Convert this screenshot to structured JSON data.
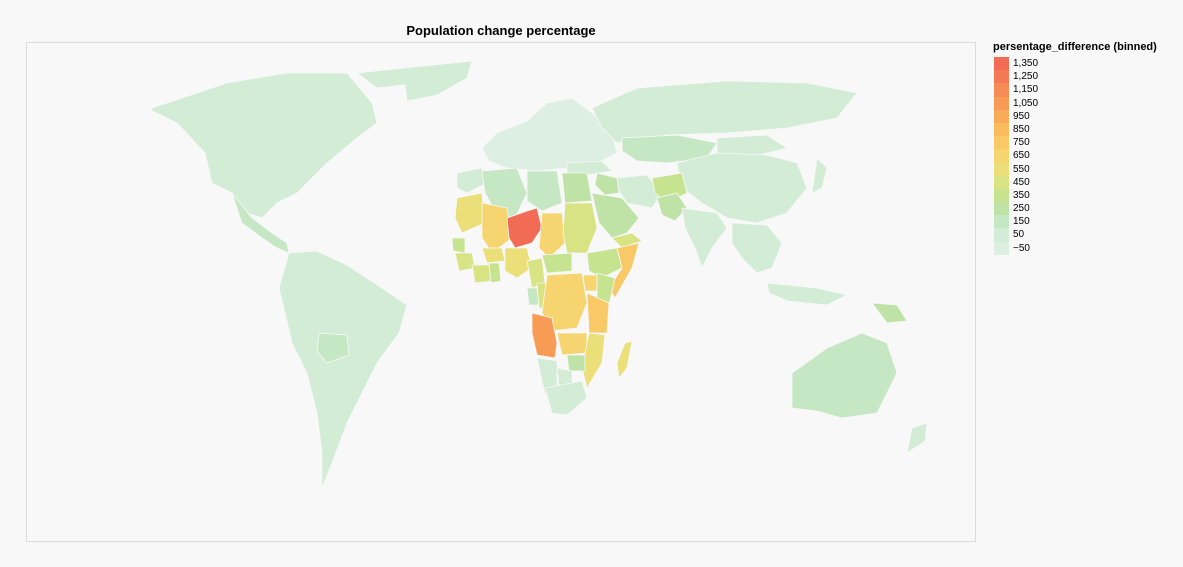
{
  "title": "Population change percentage",
  "legend": {
    "title": "persentage_difference (binned)",
    "bins": [
      {
        "label": "1,350",
        "color": "#f26b55"
      },
      {
        "label": "1,250",
        "color": "#f47a55"
      },
      {
        "label": "1,150",
        "color": "#f58b55"
      },
      {
        "label": "1,050",
        "color": "#f79b55"
      },
      {
        "label": "950",
        "color": "#f8ab58"
      },
      {
        "label": "850",
        "color": "#f9bb5e"
      },
      {
        "label": "750",
        "color": "#f9c867"
      },
      {
        "label": "650",
        "color": "#f6d571"
      },
      {
        "label": "550",
        "color": "#eadf79"
      },
      {
        "label": "450",
        "color": "#d8e383"
      },
      {
        "label": "350",
        "color": "#c6e48f"
      },
      {
        "label": "250",
        "color": "#bfe3a6"
      },
      {
        "label": "150",
        "color": "#c6e7c4"
      },
      {
        "label": "50",
        "color": "#d3ecd6"
      },
      {
        "label": "−50",
        "color": "#ddeee3"
      }
    ]
  },
  "map_data": {
    "projection": "equirectangular world",
    "values": {
      "Niger": 1350,
      "Angola": 1050,
      "Somalia": 750,
      "Tanzania": 750,
      "Mali": 650,
      "Chad": 650,
      "Sudan": 450,
      "DR Congo": 650,
      "Zambia": 650,
      "Madagascar": 550,
      "Mauritania": 550,
      "Nigeria": 550,
      "Ethiopia": 350,
      "Kenya": 350,
      "Uganda": 650,
      "Mozambique": 550,
      "Afghanistan": 350,
      "Yemen": 450,
      "Saudi Arabia": 250,
      "Algeria": 150,
      "Libya": 150,
      "Egypt": 250,
      "Pakistan": 250,
      "Kazakhstan": 150,
      "Papua New Guinea": 250,
      "Australia": 150,
      "Bolivia": 150,
      "South Africa": 50,
      "Namibia": 50,
      "Botswana": 50,
      "Zimbabwe": 250,
      "Central African Republic": 350,
      "Cameroon": 450,
      "Gabon": 150,
      "Congo": 450,
      "Guinea": 450,
      "Côte d'Ivoire": 450,
      "Ghana": 350,
      "Burkina Faso": 550,
      "Senegal": 350,
      "Morocco": 50,
      "Iraq": 250,
      "Iran": 50,
      "Turkey": 50,
      "Russia": 50,
      "China": 50,
      "India": 50,
      "Mongolia": 50,
      "Southeast Asia": 50,
      "Indonesia": 50,
      "Japan": 50,
      "Europe": -50,
      "North America": 50,
      "Greenland": 50,
      "Central America": 150,
      "South America": 50,
      "New Zealand": 50
    }
  }
}
